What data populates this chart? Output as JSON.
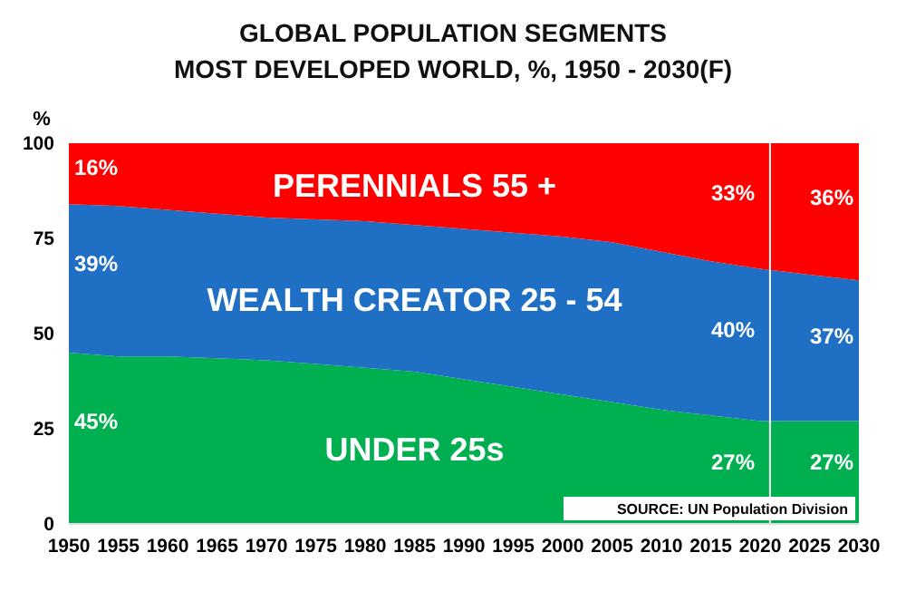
{
  "chart_data": {
    "type": "area",
    "stacked": true,
    "title": "GLOBAL POPULATION SEGMENTS",
    "subtitle": "MOST DEVELOPED WORLD, %, 1950 - 2030(F)",
    "ylabel": "%",
    "x": [
      1950,
      1955,
      1960,
      1965,
      1970,
      1975,
      1980,
      1985,
      1990,
      1995,
      2000,
      2005,
      2010,
      2015,
      2020,
      2025,
      2030
    ],
    "series": [
      {
        "name": "UNDER 25s",
        "color": "#00b050",
        "values": [
          45,
          44,
          44,
          43.5,
          43,
          42,
          41,
          40,
          38,
          36,
          34,
          32,
          30,
          28.5,
          27,
          27,
          27
        ],
        "value_labels": [
          "45%",
          null,
          null,
          null,
          null,
          null,
          null,
          null,
          null,
          null,
          null,
          null,
          null,
          null,
          "27%",
          null,
          "27%"
        ]
      },
      {
        "name": "WEALTH CREATOR 25 - 54",
        "color": "#1f6fc4",
        "values": [
          39,
          39.5,
          38.5,
          38,
          37.5,
          38,
          38.5,
          38.5,
          39.5,
          40.5,
          41.5,
          42,
          41.5,
          40.5,
          40,
          38.5,
          37
        ],
        "value_labels": [
          "39%",
          null,
          null,
          null,
          null,
          null,
          null,
          null,
          null,
          null,
          null,
          null,
          null,
          null,
          "40%",
          null,
          "37%"
        ]
      },
      {
        "name": "PERENNIALS 55 +",
        "color": "#ff0000",
        "values": [
          16,
          16.5,
          17.5,
          18.5,
          19.5,
          20,
          20.5,
          21.5,
          22.5,
          23.5,
          24.5,
          26,
          28.5,
          31,
          33,
          34.5,
          36
        ],
        "value_labels": [
          "16%",
          null,
          null,
          null,
          null,
          null,
          null,
          null,
          null,
          null,
          null,
          null,
          null,
          null,
          "33%",
          null,
          "36%"
        ]
      }
    ],
    "xlim": [
      1950,
      2030
    ],
    "xticks": [
      1950,
      1955,
      1960,
      1965,
      1970,
      1975,
      1980,
      1985,
      1990,
      1995,
      2000,
      2005,
      2010,
      2015,
      2020,
      2025,
      2030
    ],
    "ylim": [
      0,
      100
    ],
    "yticks": [
      0,
      25,
      50,
      75,
      100
    ],
    "ref_lines": [
      {
        "axis": "x",
        "value": 2021,
        "color": "#ffffff"
      }
    ],
    "annotations": [
      "SOURCE: UN Population Division"
    ],
    "legend": false,
    "grid": false
  }
}
